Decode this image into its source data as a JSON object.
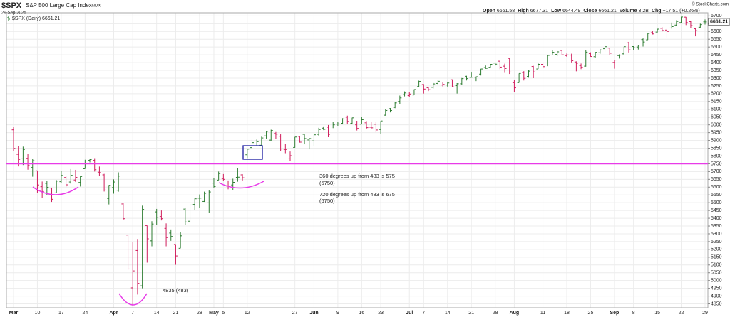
{
  "header": {
    "symbol": "$SPX",
    "name": "S&P 500 Large Cap Index",
    "exchange": "INDX",
    "date": "29-Sep-2025",
    "credit": "© StockCharts.com",
    "stats": [
      {
        "label": "Open",
        "value": "6661.58"
      },
      {
        "label": "High",
        "value": "6677.31"
      },
      {
        "label": "Low",
        "value": "6644.49"
      },
      {
        "label": "Close",
        "value": "6661.21"
      },
      {
        "label": "Volume",
        "value": "3.2B"
      },
      {
        "label": "Chg",
        "value": "+17.51 (+0.26%)"
      }
    ]
  },
  "chart_data": {
    "type": "ohlc",
    "legend": "$SPX (Daily) 6661.21",
    "categories": [
      "Mar",
      null,
      null,
      null,
      null,
      "10",
      null,
      null,
      null,
      null,
      "17",
      null,
      null,
      null,
      null,
      "24",
      null,
      null,
      null,
      null,
      null,
      "Apr",
      null,
      null,
      null,
      "7",
      null,
      null,
      null,
      null,
      "14",
      null,
      null,
      null,
      "21",
      null,
      null,
      null,
      null,
      "28",
      null,
      null,
      "May",
      null,
      "5",
      null,
      null,
      null,
      null,
      "12",
      null,
      null,
      null,
      null,
      null,
      null,
      null,
      null,
      null,
      "27",
      null,
      null,
      null,
      "Jun",
      null,
      null,
      null,
      null,
      "9",
      null,
      null,
      null,
      null,
      "16",
      null,
      null,
      null,
      "23",
      null,
      null,
      null,
      null,
      null,
      "Jul",
      null,
      null,
      "7",
      null,
      null,
      null,
      null,
      "14",
      null,
      null,
      null,
      null,
      "21",
      null,
      null,
      null,
      null,
      "28",
      null,
      null,
      null,
      "Aug",
      null,
      null,
      null,
      null,
      null,
      "11",
      null,
      null,
      null,
      null,
      "18",
      null,
      null,
      null,
      null,
      "25",
      null,
      null,
      null,
      null,
      "Sep",
      null,
      null,
      null,
      "8",
      null,
      null,
      null,
      null,
      "15",
      null,
      null,
      null,
      null,
      "22",
      null,
      null,
      null,
      null,
      "29"
    ],
    "open": [
      5968,
      5811,
      5782,
      5785,
      5726,
      5705,
      5603,
      5624,
      5594,
      5563,
      5635,
      5662,
      5633,
      5646,
      5630,
      5718,
      5772,
      5772,
      5696,
      5679,
      5527,
      5597,
      5580,
      5492,
      5292,
      4953,
      5193,
      4966,
      5353,
      5255,
      5441,
      5411,
      5335,
      5305,
      5232,
      5207,
      5459,
      5381,
      5489,
      5529,
      5508,
      5499,
      5626,
      5645,
      5655,
      5606,
      5614,
      5663,
      5679,
      5808,
      5854,
      5896,
      5869,
      5929,
      5902,
      5944,
      5927,
      5842,
      5782,
      5855,
      5926,
      5939,
      5903,
      5897,
      5939,
      5979,
      5985,
      5987,
      6005,
      6010,
      6049,
      6010,
      6000,
      6004,
      6013,
      5985,
      6004,
      5970,
      6062,
      6104,
      6112,
      6151,
      6194,
      6188,
      6192,
      6246,
      6259,
      6238,
      6241,
      6266,
      6256,
      6256,
      6290,
      6252,
      6264,
      6312,
      6305,
      6306,
      6326,
      6368,
      6370,
      6397,
      6409,
      6377,
      6427,
      6271,
      6271,
      6336,
      6311,
      6375,
      6359,
      6389,
      6398,
      6462,
      6453,
      6478,
      6445,
      6448,
      6404,
      6381,
      6377,
      6458,
      6438,
      6463,
      6489,
      6493,
      6401,
      6445,
      6456,
      6527,
      6503,
      6500,
      6548,
      6546,
      6592,
      6596,
      6620,
      6609,
      6622,
      6641,
      6657,
      6692,
      6663,
      6617,
      6627,
      6661.58
    ],
    "high": [
      5987,
      5866,
      5860,
      5812,
      5783,
      5705,
      5636,
      5642,
      5597,
      5645,
      5704,
      5670,
      5716,
      5711,
      5670,
      5776,
      5783,
      5786,
      5732,
      5685,
      5613,
      5650,
      5695,
      5500,
      5292,
      5246,
      5267,
      5481,
      5353,
      5381,
      5460,
      5450,
      5367,
      5328,
      5233,
      5309,
      5469,
      5489,
      5528,
      5553,
      5571,
      5581,
      5659,
      5700,
      5684,
      5643,
      5654,
      5720,
      5683,
      5845,
      5906,
      5906,
      5924,
      5959,
      5969,
      5954,
      5939,
      5878,
      5829,
      5922,
      5930,
      5943,
      5915,
      5937,
      5981,
      5990,
      5999,
      6017,
      6021,
      6043,
      6059,
      6046,
      6026,
      6051,
      6024,
      6018,
      6018,
      6025,
      6101,
      6108,
      6146,
      6188,
      6215,
      6210,
      6228,
      6284,
      6262,
      6242,
      6269,
      6291,
      6272,
      6273,
      6292,
      6268,
      6301,
      6315,
      6336,
      6310,
      6360,
      6381,
      6390,
      6401,
      6410,
      6393,
      6427,
      6287,
      6330,
      6345,
      6350,
      6379,
      6395,
      6403,
      6446,
      6481,
      6474,
      6481,
      6458,
      6457,
      6408,
      6394,
      6482,
      6466,
      6466,
      6487,
      6508,
      6495,
      6416,
      6453,
      6502,
      6533,
      6505,
      6513,
      6555,
      6592,
      6601,
      6616,
      6627,
      6625,
      6657,
      6672,
      6695,
      6693,
      6669,
      6619,
      6650,
      6677.31
    ],
    "low": [
      5833,
      5733,
      5742,
      5712,
      5667,
      5565,
      5529,
      5547,
      5505,
      5563,
      5628,
      5600,
      5622,
      5633,
      5604,
      5718,
      5759,
      5700,
      5670,
      5572,
      5489,
      5558,
      5571,
      5390,
      5069,
      4835,
      4910,
      4950,
      5115,
      5220,
      5359,
      5386,
      5220,
      5255,
      5101,
      5207,
      5356,
      5371,
      5455,
      5468,
      5505,
      5434,
      5597,
      5645,
      5640,
      5586,
      5580,
      5635,
      5643,
      5786,
      5843,
      5869,
      5865,
      5912,
      5895,
      5910,
      5830,
      5818,
      5767,
      5854,
      5886,
      5875,
      5843,
      5861,
      5929,
      5966,
      5921,
      5979,
      5994,
      6003,
      6003,
      6004,
      5964,
      6004,
      5975,
      5971,
      5952,
      5943,
      6059,
      6080,
      6107,
      6133,
      6183,
      6177,
      6191,
      6241,
      6201,
      6217,
      6234,
      6255,
      6247,
      6246,
      6243,
      6201,
      6257,
      6285,
      6303,
      6281,
      6317,
      6360,
      6364,
      6380,
      6358,
      6334,
      6327,
      6212,
      6271,
      6285,
      6303,
      6300,
      6359,
      6362,
      6377,
      6451,
      6441,
      6446,
      6437,
      6401,
      6344,
      6358,
      6374,
      6438,
      6433,
      6457,
      6470,
      6447,
      6361,
      6426,
      6451,
      6465,
      6478,
      6484,
      6503,
      6546,
      6581,
      6593,
      6600,
      6560,
      6618,
      6635,
      6656,
      6641,
      6621,
      6569,
      6622,
      6644.49
    ],
    "close": [
      5849,
      5778,
      5842,
      5739,
      5770,
      5614,
      5572,
      5599,
      5522,
      5639,
      5675,
      5615,
      5676,
      5663,
      5668,
      5768,
      5777,
      5712,
      5693,
      5581,
      5612,
      5633,
      5671,
      5397,
      5074,
      5062,
      4982,
      5457,
      5268,
      5363,
      5406,
      5397,
      5276,
      5283,
      5158,
      5287,
      5376,
      5485,
      5525,
      5529,
      5560,
      5569,
      5604,
      5687,
      5650,
      5607,
      5631,
      5664,
      5660,
      5844,
      5886,
      5892,
      5916,
      5958,
      5964,
      5940,
      5845,
      5842,
      5802,
      5922,
      5889,
      5912,
      5912,
      5936,
      5970,
      5971,
      5939,
      6000,
      6006,
      6038,
      6022,
      6045,
      5977,
      6033,
      5982,
      5981,
      5967,
      6025,
      6092,
      6092,
      6141,
      6173,
      6205,
      6198,
      6227,
      6279,
      6230,
      6226,
      6263,
      6280,
      6260,
      6269,
      6244,
      6264,
      6297,
      6297,
      6306,
      6309,
      6359,
      6363,
      6389,
      6390,
      6371,
      6362,
      6339,
      6238,
      6330,
      6299,
      6345,
      6340,
      6389,
      6374,
      6446,
      6466,
      6469,
      6450,
      6449,
      6412,
      6396,
      6370,
      6467,
      6439,
      6466,
      6481,
      6502,
      6460,
      6416,
      6448,
      6502,
      6482,
      6495,
      6512,
      6532,
      6587,
      6584,
      6615,
      6606,
      6600,
      6631,
      6664,
      6693,
      6657,
      6638,
      6605,
      6644,
      6661.21
    ],
    "up_color": "#2e7d32",
    "down_color": "#d01c5b",
    "ylim": [
      4825,
      6720
    ],
    "yticks": [
      4850,
      4900,
      4950,
      5000,
      5050,
      5100,
      5150,
      5200,
      5250,
      5300,
      5350,
      5400,
      5450,
      5500,
      5550,
      5600,
      5650,
      5700,
      5750,
      5800,
      5850,
      5900,
      5950,
      6000,
      6050,
      6100,
      6150,
      6200,
      6250,
      6300,
      6350,
      6400,
      6450,
      6500,
      6550,
      6600,
      6650,
      6700
    ],
    "grid": true,
    "hline": {
      "value": 5750,
      "color": "#e83be8"
    },
    "annotations": [
      "4835 (483)",
      "360 degrees up from 483 is 575",
      "(5750)",
      "720 degrees up from 483 is 675",
      "(6750)"
    ]
  }
}
